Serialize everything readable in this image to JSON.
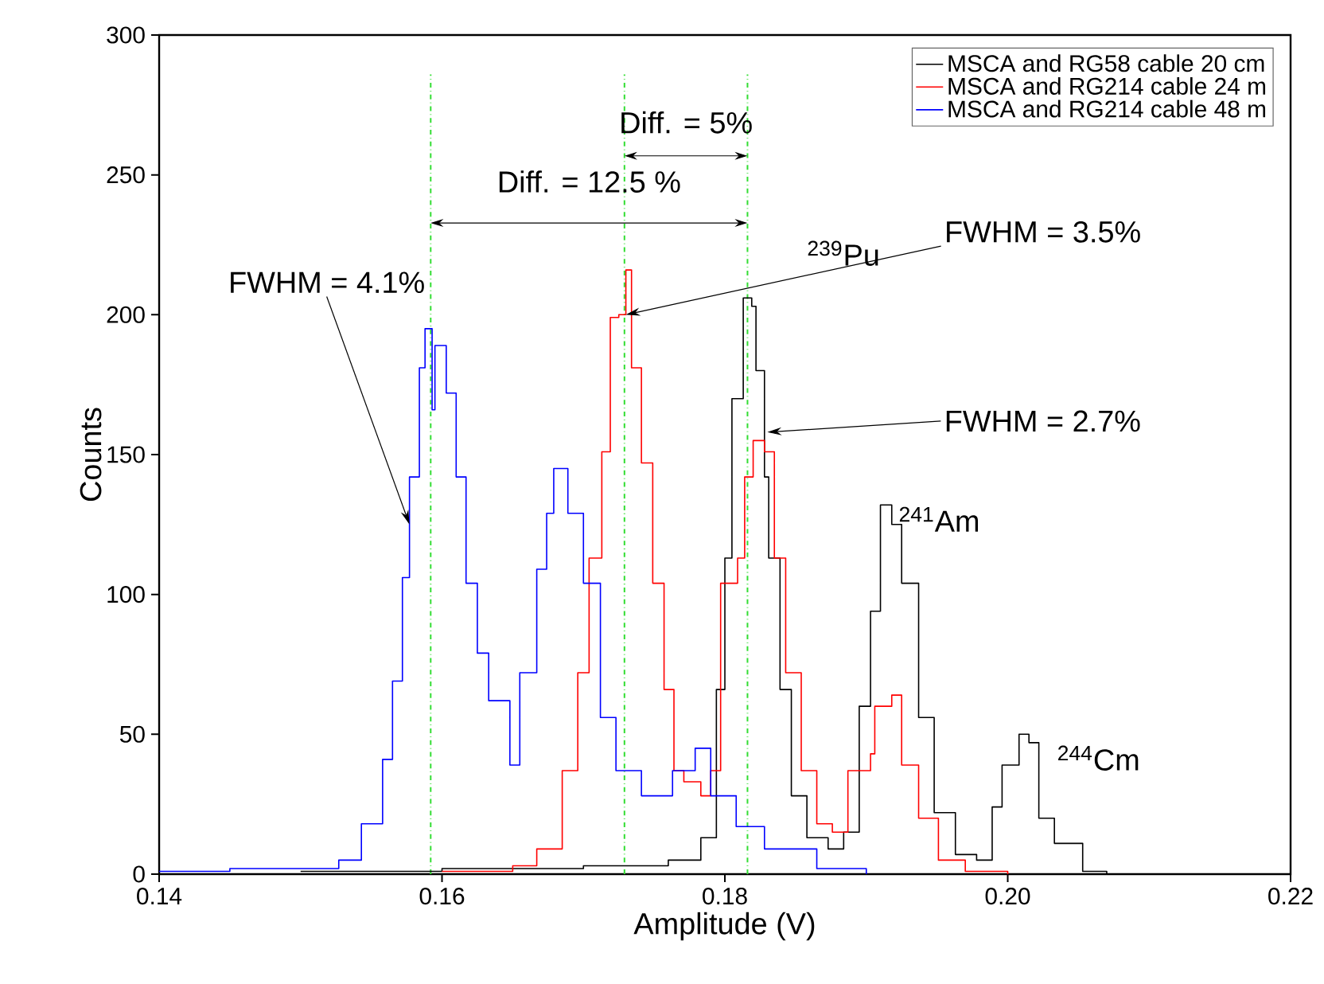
{
  "chart_data": {
    "type": "step",
    "xlabel": "Amplitude (V)",
    "ylabel": "Counts",
    "xlim": [
      0.14,
      0.22
    ],
    "ylim": [
      0,
      300
    ],
    "xticks": [
      {
        "value": 0.14,
        "label": "0.14"
      },
      {
        "value": 0.16,
        "label": "0.16"
      },
      {
        "value": 0.18,
        "label": "0.18"
      },
      {
        "value": 0.2,
        "label": "0.20"
      },
      {
        "value": 0.22,
        "label": "0.22"
      }
    ],
    "yticks": [
      0,
      50,
      100,
      150,
      200,
      250,
      300
    ],
    "legend": "top right",
    "grid": false,
    "series": [
      {
        "name": "MSCA and RG58  cable 20 cm",
        "color": "#000000",
        "x": [
          0.15,
          0.16,
          0.17,
          0.176,
          0.1783,
          0.1794,
          0.18,
          0.1805,
          0.1813,
          0.1819,
          0.1822,
          0.1828,
          0.1831,
          0.1839,
          0.1847,
          0.1858,
          0.1873,
          0.1884,
          0.1895,
          0.1903,
          0.191,
          0.1918,
          0.1925,
          0.1937,
          0.1948,
          0.1963,
          0.1978,
          0.1989,
          0.1996,
          0.2008,
          0.2015,
          0.2022,
          0.2033,
          0.2053,
          0.207
        ],
        "values": [
          1,
          2,
          3,
          5,
          13,
          66,
          113,
          170,
          206,
          203,
          180,
          142,
          113,
          66,
          28,
          13,
          9,
          15,
          60,
          94,
          132,
          125,
          104,
          56,
          22,
          7,
          5,
          24,
          39,
          50,
          47,
          20,
          11,
          1,
          0
        ]
      },
      {
        "name": "MSCA and RG214 cable 24 m",
        "color": "#ff0000",
        "x": [
          0.16,
          0.165,
          0.1667,
          0.1685,
          0.1696,
          0.1704,
          0.1713,
          0.1719,
          0.1725,
          0.173,
          0.1734,
          0.1741,
          0.1749,
          0.1757,
          0.1764,
          0.1771,
          0.1783,
          0.179,
          0.1797,
          0.1809,
          0.1814,
          0.182,
          0.1828,
          0.1835,
          0.1843,
          0.1854,
          0.1865,
          0.1876,
          0.1887,
          0.1903,
          0.1906,
          0.1918,
          0.1925,
          0.1937,
          0.1951,
          0.197,
          0.2
        ],
        "values": [
          1,
          3,
          9,
          37,
          72,
          113,
          151,
          199,
          200,
          216,
          181,
          147,
          104,
          66,
          37,
          33,
          28,
          37,
          104,
          113,
          142,
          155,
          151,
          113,
          72,
          37,
          18,
          15,
          37,
          43,
          60,
          64,
          39,
          20,
          5,
          1,
          0
        ]
      },
      {
        "name": "MSCA and RG214 cable 48 m",
        "color": "#0000ff",
        "x": [
          0.14,
          0.145,
          0.15,
          0.1527,
          0.1543,
          0.1558,
          0.1565,
          0.1572,
          0.1577,
          0.1584,
          0.1588,
          0.1593,
          0.1595,
          0.1603,
          0.161,
          0.1617,
          0.1625,
          0.1633,
          0.1648,
          0.1655,
          0.1667,
          0.1674,
          0.1679,
          0.1689,
          0.17,
          0.1712,
          0.1723,
          0.1741,
          0.1763,
          0.1779,
          0.179,
          0.1808,
          0.1828,
          0.1865,
          0.19
        ],
        "values": [
          1,
          2,
          2,
          5,
          18,
          41,
          69,
          106,
          142,
          181,
          195,
          166,
          189,
          172,
          142,
          104,
          79,
          62,
          39,
          72,
          109,
          129,
          145,
          129,
          104,
          56,
          37,
          28,
          37,
          45,
          28,
          17,
          9,
          2,
          0
        ]
      }
    ],
    "ref_lines": [
      {
        "axis": "x",
        "value": 0.1592,
        "color": "#33dd33",
        "line_style": "dashdot"
      },
      {
        "axis": "x",
        "value": 0.1729,
        "color": "#33dd33",
        "line_style": "dashdot"
      },
      {
        "axis": "x",
        "value": 0.1816,
        "color": "#33dd33",
        "line_style": "dashdot"
      }
    ],
    "annotations": [
      "Diff. = 5%",
      "Diff. = 12.5 %",
      {
        "text": "FWHM = 4.1%",
        "x": 0.1577,
        "y": 125
      },
      {
        "text": "FWHM = 3.5%",
        "x": 0.173,
        "y": 200
      },
      {
        "text": "FWHM = 2.7%",
        "x": 0.183,
        "y": 158
      },
      {
        "text": "$^{239}$Pu",
        "x": 0.1813,
        "y": 206
      },
      {
        "text": "$^{241}$Am",
        "x": 0.191,
        "y": 132
      },
      {
        "text": "$^{244}$Cm",
        "x": 0.2008,
        "y": 50
      }
    ]
  }
}
